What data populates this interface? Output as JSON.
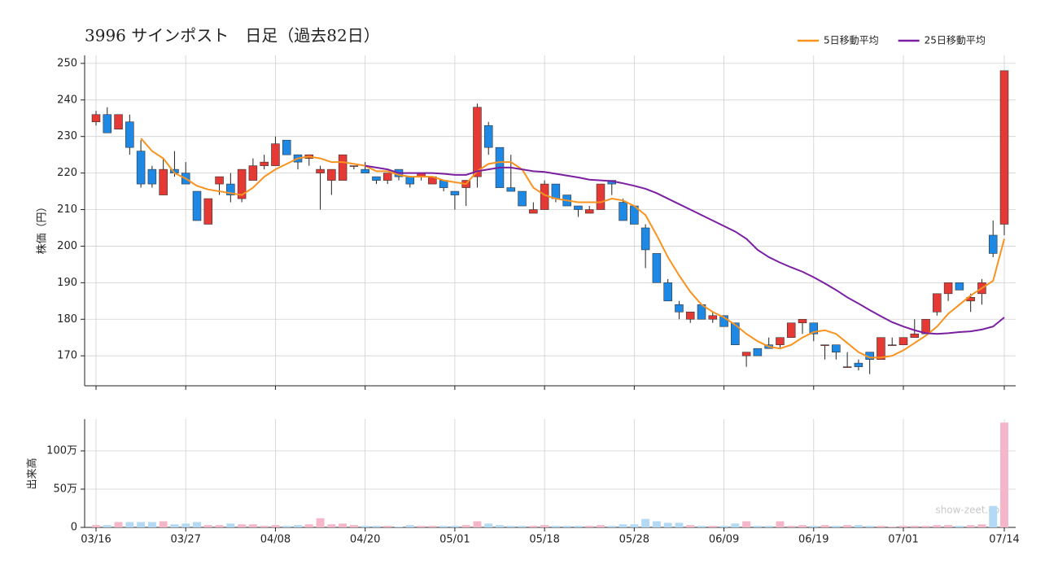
{
  "chart_data": [
    {
      "type": "candlestick",
      "title": "3996 サインポスト　日足（過去82日）",
      "ylabel": "株価（円）",
      "up_color": "#e53935",
      "down_color": "#1e88e5",
      "grid": true,
      "legend": "top-right",
      "ylim": [
        161.8,
        252.2
      ],
      "yticks": [
        170,
        180,
        190,
        200,
        210,
        220,
        230,
        240,
        250
      ],
      "open": [
        234,
        236,
        232,
        234,
        226,
        221,
        214,
        221,
        220,
        215,
        206,
        217,
        217,
        213,
        218,
        222,
        222,
        229,
        225,
        224,
        220,
        218,
        218,
        222,
        221,
        219,
        218,
        221,
        219,
        219,
        217,
        218,
        215,
        216,
        219,
        233,
        227,
        216,
        215,
        209,
        210,
        217,
        214,
        211,
        209,
        210,
        218,
        212,
        211,
        205,
        198,
        190,
        184,
        180,
        184,
        180,
        181,
        179,
        170,
        172,
        173,
        173,
        175,
        179,
        179,
        173,
        173,
        167,
        168,
        171,
        169,
        173,
        173,
        175,
        176,
        182,
        187,
        190,
        185,
        187,
        203,
        206
      ],
      "high": [
        237,
        238,
        236,
        236,
        229,
        222,
        224,
        226,
        223,
        215,
        213,
        219,
        220,
        221,
        224,
        225,
        230,
        229,
        225,
        225,
        222,
        221,
        225,
        222,
        223,
        219,
        220,
        221,
        219,
        220,
        219,
        218,
        215,
        218,
        239,
        234,
        227,
        225,
        215,
        212,
        218,
        217,
        214,
        211,
        211,
        217,
        218,
        213,
        211,
        206,
        198,
        191,
        185,
        182,
        184,
        182,
        181,
        179,
        171,
        172,
        175,
        175,
        179,
        180,
        179,
        173,
        173,
        171,
        169,
        171,
        175,
        175,
        175,
        180,
        180,
        187,
        190,
        190,
        187,
        191,
        207,
        248
      ],
      "low": [
        233,
        231,
        232,
        225,
        216,
        216,
        214,
        219,
        217,
        207,
        206,
        214,
        212,
        212,
        218,
        221,
        222,
        225,
        221,
        222,
        210,
        214,
        218,
        221,
        220,
        217,
        217,
        218,
        216,
        218,
        217,
        215,
        210,
        211,
        216,
        225,
        216,
        215,
        211,
        209,
        210,
        212,
        211,
        208,
        209,
        210,
        214,
        207,
        206,
        194,
        190,
        185,
        180,
        179,
        180,
        179,
        178,
        173,
        167,
        170,
        172,
        172,
        175,
        176,
        174,
        169,
        169,
        167,
        166,
        165,
        169,
        173,
        173,
        175,
        176,
        181,
        185,
        188,
        182,
        184,
        197,
        203
      ],
      "close": [
        236,
        231,
        236,
        227,
        217,
        217,
        221,
        220,
        217,
        207,
        213,
        219,
        214,
        221,
        222,
        223,
        228,
        225,
        223,
        225,
        221,
        221,
        225,
        222,
        220,
        218,
        220,
        219,
        217,
        220,
        219,
        216,
        214,
        218,
        238,
        227,
        216,
        215,
        211,
        210,
        217,
        213,
        211,
        210,
        210,
        217,
        217,
        207,
        206,
        199,
        190,
        185,
        182,
        182,
        180,
        181,
        178,
        173,
        171,
        170,
        172,
        175,
        179,
        180,
        176,
        173,
        171,
        167,
        167,
        169,
        175,
        173,
        175,
        176,
        180,
        187,
        190,
        188,
        186,
        190,
        198,
        248
      ],
      "series": [
        {
          "name": "5日移動平均",
          "color": "#f7931e",
          "values": [
            null,
            null,
            null,
            null,
            229.5,
            226,
            224,
            220,
            218.5,
            216.5,
            215.5,
            215,
            214.5,
            214,
            216,
            219,
            221,
            222.5,
            224,
            224.5,
            224,
            223,
            223,
            222.5,
            222,
            220.5,
            220.5,
            219.5,
            219,
            219,
            219,
            218,
            217.5,
            217,
            220.5,
            222.5,
            223,
            223,
            221,
            216,
            214,
            213,
            212.5,
            212,
            212,
            212,
            213,
            212.5,
            211,
            208.5,
            203,
            197,
            192,
            187.5,
            184,
            182,
            180.5,
            178.5,
            176,
            174,
            172.5,
            172,
            173,
            175,
            176.5,
            177,
            176,
            173.5,
            171,
            169.5,
            169.5,
            170,
            171.5,
            173.5,
            175.5,
            178,
            181.5,
            184,
            186.5,
            188.5,
            190.5,
            202
          ]
        },
        {
          "name": "25日移動平均",
          "color": "#7b1fa2",
          "values": [
            null,
            null,
            null,
            null,
            null,
            null,
            null,
            null,
            null,
            null,
            null,
            null,
            null,
            null,
            null,
            null,
            null,
            null,
            null,
            null,
            null,
            null,
            null,
            null,
            222,
            221.5,
            221,
            220,
            220,
            220,
            220,
            219.8,
            219.5,
            219.5,
            220.5,
            221,
            221.5,
            221.5,
            221,
            220.5,
            220.3,
            219.8,
            219.3,
            218.8,
            218.2,
            218,
            217.8,
            217.2,
            216.5,
            215.7,
            214.5,
            213,
            211.5,
            210,
            208.5,
            207,
            205.5,
            204,
            202,
            199,
            197,
            195.5,
            194.2,
            193,
            191.5,
            189.8,
            188,
            186,
            184.3,
            182.5,
            180.8,
            179.2,
            178,
            177,
            176.2,
            176,
            176.2,
            176.5,
            176.7,
            177.2,
            178,
            180.5
          ]
        }
      ]
    },
    {
      "type": "bar",
      "ylabel": "出来高",
      "up_color": "#f4b6c8",
      "down_color": "#b3d9f5",
      "grid": true,
      "watermark": "show-zeet.com",
      "ylim": [
        0,
        1415000
      ],
      "yticks": [
        0,
        {
          "value": 500000,
          "label": "50万"
        },
        {
          "value": 1000000,
          "label": "100万"
        }
      ],
      "categories": [
        "03/16",
        null,
        null,
        null,
        null,
        null,
        null,
        null,
        "03/27",
        null,
        null,
        null,
        null,
        null,
        null,
        null,
        "04/08",
        null,
        null,
        null,
        null,
        null,
        null,
        null,
        "04/20",
        null,
        null,
        null,
        null,
        null,
        null,
        null,
        "05/01",
        null,
        null,
        null,
        null,
        null,
        null,
        null,
        "05/18",
        null,
        null,
        null,
        null,
        null,
        null,
        null,
        "05/28",
        null,
        null,
        null,
        null,
        null,
        null,
        null,
        "06/09",
        null,
        null,
        null,
        null,
        null,
        null,
        null,
        "06/19",
        null,
        null,
        null,
        null,
        null,
        null,
        null,
        "07/01",
        null,
        null,
        null,
        null,
        null,
        null,
        null,
        null,
        "07/14"
      ],
      "values": [
        30000,
        30000,
        70000,
        70000,
        70000,
        70000,
        80000,
        40000,
        50000,
        70000,
        30000,
        30000,
        50000,
        40000,
        40000,
        20000,
        30000,
        20000,
        30000,
        40000,
        120000,
        40000,
        50000,
        30000,
        20000,
        20000,
        20000,
        10000,
        30000,
        20000,
        20000,
        20000,
        20000,
        30000,
        80000,
        50000,
        30000,
        20000,
        20000,
        20000,
        30000,
        20000,
        20000,
        20000,
        20000,
        30000,
        20000,
        40000,
        40000,
        110000,
        80000,
        60000,
        60000,
        30000,
        20000,
        20000,
        20000,
        50000,
        80000,
        20000,
        20000,
        80000,
        20000,
        30000,
        20000,
        30000,
        20000,
        30000,
        30000,
        20000,
        20000,
        10000,
        20000,
        20000,
        20000,
        30000,
        30000,
        20000,
        30000,
        40000,
        280000,
        1370000
      ]
    }
  ]
}
